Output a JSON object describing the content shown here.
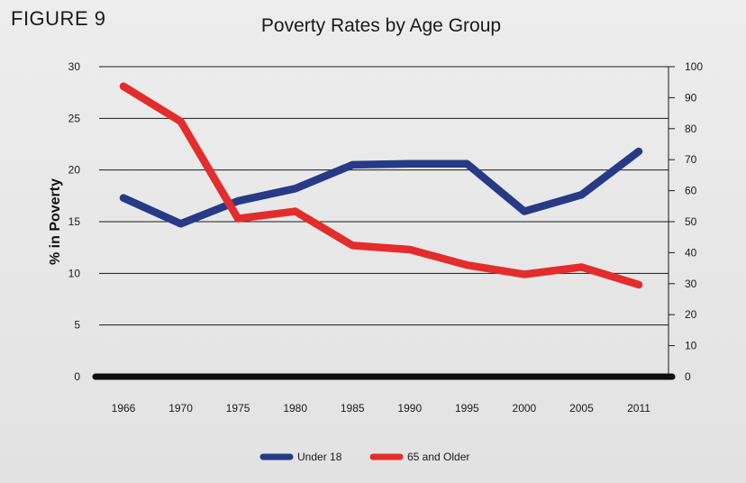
{
  "figure_label": "FIGURE 9",
  "chart_data": {
    "type": "line",
    "title": "Poverty Rates by Age Group",
    "xlabel": "",
    "ylabel": "% in Poverty",
    "categories": [
      "1966",
      "1970",
      "1975",
      "1980",
      "1985",
      "1990",
      "1995",
      "2000",
      "2005",
      "2011"
    ],
    "ylim": [
      0,
      30
    ],
    "yticks": [
      0,
      5,
      10,
      15,
      20,
      25,
      30
    ],
    "y2lim": [
      0,
      100
    ],
    "y2ticks": [
      0,
      10,
      20,
      30,
      40,
      50,
      60,
      70,
      80,
      90,
      100
    ],
    "grid": true,
    "legend_position": "bottom",
    "series": [
      {
        "name": "Under 18",
        "color": "#273a85",
        "values": [
          17.3,
          14.8,
          17.0,
          18.2,
          20.5,
          20.6,
          20.6,
          16.0,
          17.6,
          21.8
        ]
      },
      {
        "name": "65 and Older",
        "color": "#e32d2c",
        "values": [
          28.1,
          24.7,
          15.3,
          16.0,
          12.7,
          12.3,
          10.8,
          9.9,
          10.6,
          8.9
        ]
      }
    ]
  }
}
